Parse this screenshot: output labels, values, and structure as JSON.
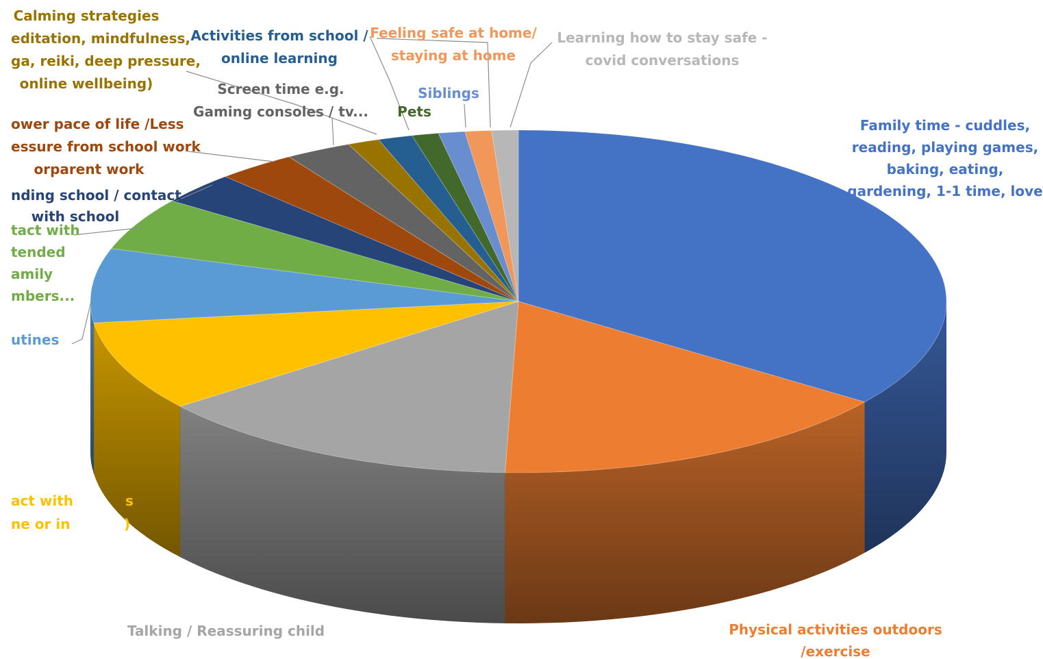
{
  "chart_data": {
    "type": "pie",
    "title": "",
    "style": "3d-pie",
    "start_angle_deg": 0,
    "direction": "clockwise",
    "slices": [
      {
        "label": "Family time - cuddles, reading, playing games, baking, eating, gardening, 1-1 time, love",
        "value": 35,
        "color": "#4472C4"
      },
      {
        "label": "Physical activities outdoors /exercise",
        "value": 15.5,
        "color": "#ED7D31"
      },
      {
        "label": "Talking / Reassuring child",
        "value": 14,
        "color": "#A5A5A5"
      },
      {
        "label": "act with ... ne or in ...)",
        "value": 8.5,
        "color": "#FFC000"
      },
      {
        "label": "utines",
        "value": 7,
        "color": "#5B9BD5"
      },
      {
        "label": "tact with tended amily mbers...",
        "value": 5,
        "color": "#70AD47"
      },
      {
        "label": "nding school / contact with school",
        "value": 3,
        "color": "#264478"
      },
      {
        "label": "ower pace of life /Less essure from school work orparent work",
        "value": 3,
        "color": "#9E480E"
      },
      {
        "label": "Screen time e.g. Gaming consoles / tv...",
        "value": 2.5,
        "color": "#636363"
      },
      {
        "label": "Calming strategies editation, mindfulness, ga, reiki, deep pressure, online wellbeing)",
        "value": 1.2,
        "color": "#997300"
      },
      {
        "label": "Activities from school / online learning",
        "value": 1.3,
        "color": "#255E91"
      },
      {
        "label": "Pets",
        "value": 1.0,
        "color": "#43682B"
      },
      {
        "label": "Siblings",
        "value": 1.0,
        "color": "#698ED0"
      },
      {
        "label": "Feeling safe at home/ staying at home",
        "value": 1.0,
        "color": "#F1975A"
      },
      {
        "label": "Learning how to stay safe - covid conversations",
        "value": 1.0,
        "color": "#B7B7B7"
      }
    ]
  },
  "labels": [
    {
      "lines": [
        "Family time - cuddles,",
        "reading, playing games,",
        "baking, eating,",
        "gardening, 1-1 time, love"
      ],
      "color": "#4472C4"
    },
    {
      "lines": [
        "Physical activities outdoors",
        "/exercise"
      ],
      "color": "#ED7D31"
    },
    {
      "lines": [
        "Talking / Reassuring child"
      ],
      "color": "#A5A5A5"
    },
    {
      "lines": [
        "act with",
        "ne or in"
      ],
      "color": "#FFC000"
    },
    {
      "lines": [
        "utines"
      ],
      "color": "#5B9BD5"
    },
    {
      "lines": [
        "tact with",
        "tended",
        "amily",
        "mbers..."
      ],
      "color": "#70AD47"
    },
    {
      "lines": [
        "nding school / contact",
        "with school"
      ],
      "color": "#264478"
    },
    {
      "lines": [
        "ower pace of life /Less",
        "essure from school work",
        "orparent work"
      ],
      "color": "#9E480E"
    },
    {
      "lines": [
        "Screen time e.g.",
        "Gaming consoles / tv..."
      ],
      "color": "#636363"
    },
    {
      "lines": [
        "Calming strategies",
        "editation, mindfulness,",
        "ga, reiki, deep pressure,",
        "online wellbeing)"
      ],
      "color": "#997300"
    },
    {
      "lines": [
        "Activities from school /",
        "online learning"
      ],
      "color": "#255E91"
    },
    {
      "lines": [
        "Pets"
      ],
      "color": "#43682B"
    },
    {
      "lines": [
        "Siblings"
      ],
      "color": "#698ED0"
    },
    {
      "lines": [
        "Feeling safe at home/",
        "staying at home"
      ],
      "color": "#F1975A"
    },
    {
      "lines": [
        "Learning how to stay safe -",
        "covid conversations"
      ],
      "color": "#B7B7B7"
    }
  ],
  "label_fragments": [
    "s",
    ")"
  ]
}
